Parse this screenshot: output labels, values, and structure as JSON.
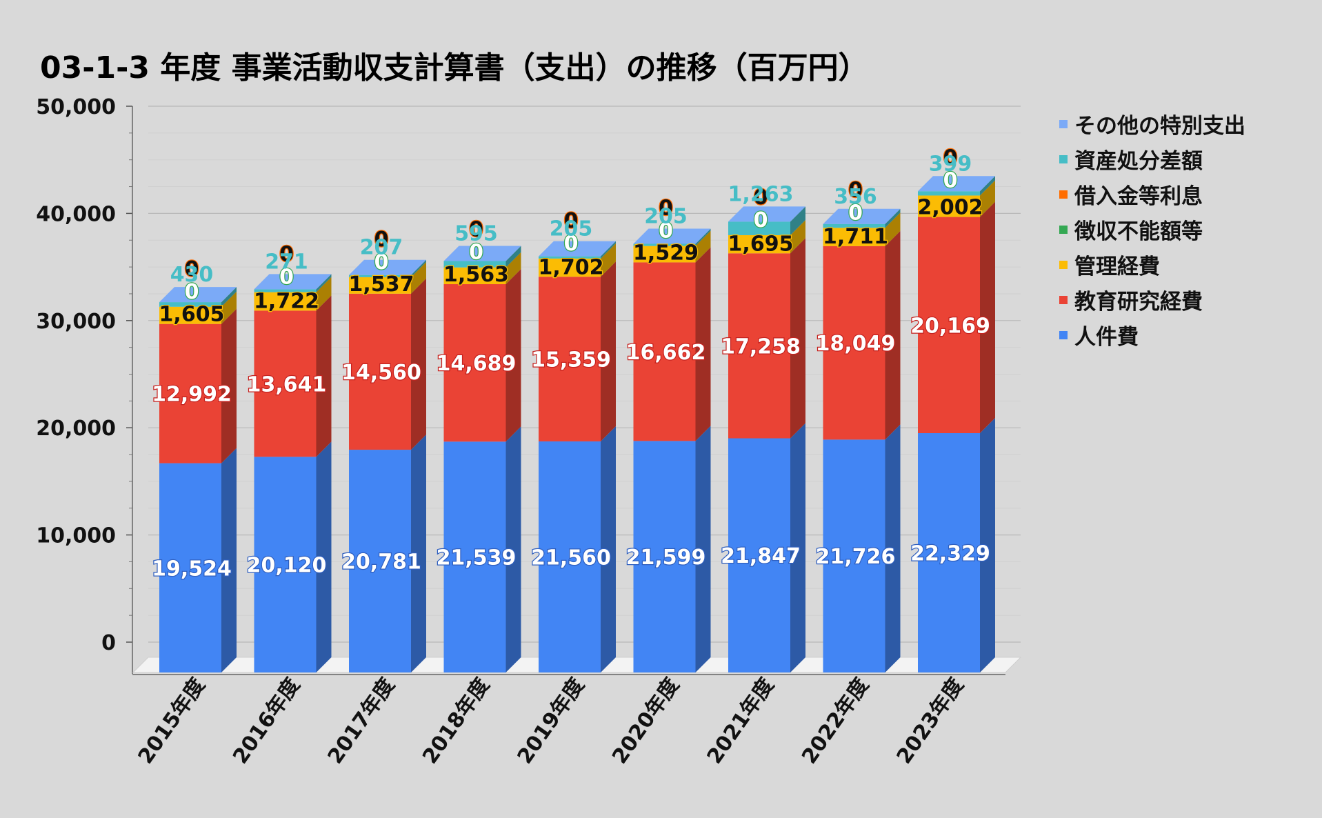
{
  "chart_data": {
    "type": "bar",
    "stacked": true,
    "three_d": true,
    "title": "03-1-3 年度 事業活動収支計算書（支出）の推移（百万円）",
    "categories": [
      "2015年度",
      "2016年度",
      "2017年度",
      "2018年度",
      "2019年度",
      "2020年度",
      "2021年度",
      "2022年度",
      "2023年度"
    ],
    "ylim": [
      0,
      50000
    ],
    "yticks": [
      0,
      10000,
      20000,
      30000,
      40000,
      50000
    ],
    "ytick_labels": [
      "0",
      "10,000",
      "20,000",
      "30,000",
      "40,000",
      "50,000"
    ],
    "grid": true,
    "legend_position": "right",
    "series": [
      {
        "name": "人件費",
        "color": "#4285f4",
        "values": [
          19524,
          20120,
          20781,
          21539,
          21560,
          21599,
          21847,
          21726,
          22329
        ],
        "labels": [
          "19,524",
          "20,120",
          "20,781",
          "21,539",
          "21,560",
          "21,599",
          "21,847",
          "21,726",
          "22,329"
        ]
      },
      {
        "name": "教育研究経費",
        "color": "#ea4335",
        "values": [
          12992,
          13641,
          14560,
          14689,
          15359,
          16662,
          17258,
          18049,
          20169
        ],
        "labels": [
          "12,992",
          "13,641",
          "14,560",
          "14,689",
          "15,359",
          "16,662",
          "17,258",
          "18,049",
          "20,169"
        ]
      },
      {
        "name": "管理経費",
        "color": "#fbbc04",
        "values": [
          1605,
          1722,
          1537,
          1563,
          1702,
          1529,
          1695,
          1711,
          2002
        ],
        "labels": [
          "1,605",
          "1,722",
          "1,537",
          "1,563",
          "1,702",
          "1,529",
          "1,695",
          "1,711",
          "2,002"
        ]
      },
      {
        "name": "徴収不能額等",
        "color": "#34a853",
        "values": [
          0,
          0,
          0,
          0,
          0,
          0,
          0,
          0,
          0
        ],
        "labels": [
          "0",
          "0",
          "0",
          "0",
          "0",
          "0",
          "0",
          "0",
          "0"
        ]
      },
      {
        "name": "借入金等利息",
        "color": "#ff6d01",
        "values": [
          0,
          0,
          0,
          0,
          0,
          0,
          0,
          0,
          0
        ],
        "labels": [
          "0",
          "0",
          "0",
          "0",
          "0",
          "0",
          "0",
          "0",
          "0"
        ]
      },
      {
        "name": "資産処分差額",
        "color": "#46bdc6",
        "values": [
          430,
          271,
          207,
          595,
          205,
          205,
          1263,
          356,
          399
        ],
        "labels": [
          "430",
          "271",
          "207",
          "595",
          "205",
          "205",
          "1,263",
          "356",
          "399"
        ]
      },
      {
        "name": "その他の特別支出",
        "color": "#7baaf7",
        "values": [
          0,
          0,
          0,
          0,
          0,
          0,
          0,
          0,
          0
        ]
      }
    ]
  }
}
